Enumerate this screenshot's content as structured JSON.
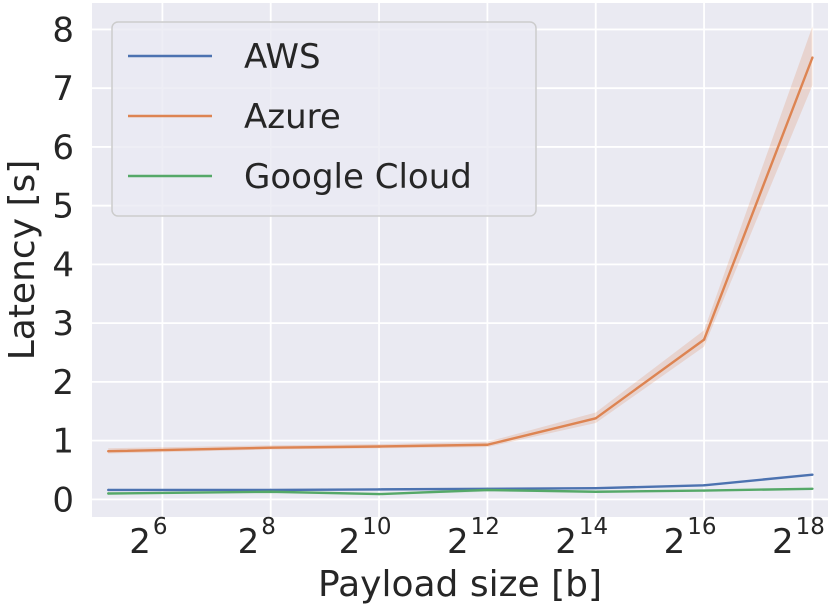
{
  "chart_data": {
    "type": "line",
    "xlabel": "Payload size [b]",
    "ylabel": "Latency [s]",
    "x_scale": "log2",
    "x": [
      32,
      256,
      1024,
      4096,
      16384,
      65536,
      262144
    ],
    "x_ticks": [
      {
        "value": 64,
        "base": "2",
        "exp": "6"
      },
      {
        "value": 256,
        "base": "2",
        "exp": "8"
      },
      {
        "value": 1024,
        "base": "2",
        "exp": "10"
      },
      {
        "value": 4096,
        "base": "2",
        "exp": "12"
      },
      {
        "value": 16384,
        "base": "2",
        "exp": "14"
      },
      {
        "value": 65536,
        "base": "2",
        "exp": "16"
      },
      {
        "value": 262144,
        "base": "2",
        "exp": "18"
      }
    ],
    "y_ticks": [
      "0",
      "1",
      "2",
      "3",
      "4",
      "5",
      "6",
      "7",
      "8"
    ],
    "ylim": [
      -0.3,
      8.45
    ],
    "grid": true,
    "legend_position": "top-left",
    "series": [
      {
        "name": "AWS",
        "color": "#4c72b0",
        "values": [
          0.16,
          0.16,
          0.17,
          0.18,
          0.19,
          0.24,
          0.42
        ],
        "lower": [
          0.16,
          0.16,
          0.17,
          0.18,
          0.19,
          0.24,
          0.42
        ],
        "upper": [
          0.16,
          0.16,
          0.17,
          0.18,
          0.19,
          0.24,
          0.42
        ]
      },
      {
        "name": "Azure",
        "color": "#dd8452",
        "values": [
          0.82,
          0.88,
          0.9,
          0.93,
          1.38,
          2.72,
          7.52
        ],
        "lower": [
          0.78,
          0.85,
          0.87,
          0.89,
          1.3,
          2.6,
          7.05
        ],
        "upper": [
          0.87,
          0.92,
          0.94,
          0.98,
          1.48,
          2.88,
          8.05
        ]
      },
      {
        "name": "Google Cloud",
        "color": "#55a868",
        "values": [
          0.1,
          0.13,
          0.09,
          0.16,
          0.13,
          0.15,
          0.18
        ],
        "lower": [
          0.09,
          0.12,
          0.08,
          0.13,
          0.12,
          0.14,
          0.17
        ],
        "upper": [
          0.11,
          0.14,
          0.1,
          0.2,
          0.14,
          0.16,
          0.19
        ]
      }
    ]
  }
}
